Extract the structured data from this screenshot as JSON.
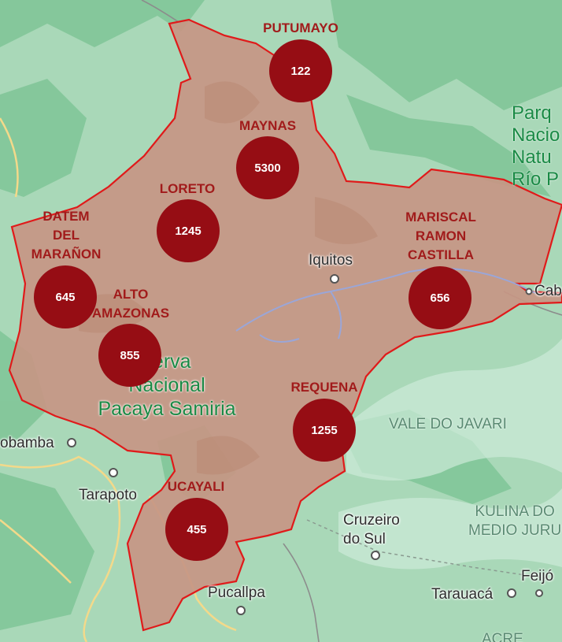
{
  "colors": {
    "land_green": "#a9d8b8",
    "forest_green": "#7fc596",
    "region_fill": "#c79684",
    "border_red": "#e01a1a",
    "bubble": "#960d14",
    "label_red": "#a11b1b"
  },
  "provinces": [
    {
      "name": "PUTUMAYO",
      "count": "122"
    },
    {
      "name": "MAYNAS",
      "count": "5300"
    },
    {
      "name": "LORETO",
      "count": "1245"
    },
    {
      "name": "DATEM\nDEL\nMARAÑON",
      "count": "645"
    },
    {
      "name": "ALTO\nAMAZONAS",
      "count": "855"
    },
    {
      "name": "MARISCAL\nRAMON\nCASTILLA",
      "count": "656"
    },
    {
      "name": "REQUENA",
      "count": "1255"
    },
    {
      "name": "UCAYALI",
      "count": "455"
    }
  ],
  "places": [
    {
      "name": "Iquitos"
    },
    {
      "name": "Cab"
    },
    {
      "name": "obamba"
    },
    {
      "name": "Tarapoto"
    },
    {
      "name": "Cruzeiro\ndo Sul"
    },
    {
      "name": "Pucallpa"
    },
    {
      "name": "Tarauacá"
    },
    {
      "name": "Feijó"
    }
  ],
  "reserve": "serva\nNacional\nPacaya Samiria",
  "regions": {
    "park": "Parq\nNacio\nNatu\nRío P",
    "javari": "VALE DO JAVARI",
    "kulina": "KULINA DO\nMEDIO JURU",
    "acre": "ACRE"
  }
}
